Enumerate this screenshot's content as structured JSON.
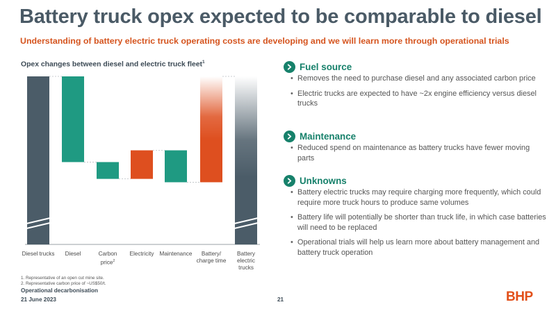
{
  "header": {
    "title": "Battery truck opex expected to be comparable to diesel",
    "subtitle": "Understanding of battery electric truck operating costs are developing and we will learn more through operational trials"
  },
  "chart": {
    "title": "Opex changes between diesel and electric truck fleet",
    "title_sup": "1"
  },
  "chart_data": {
    "type": "bar",
    "subtype": "waterfall",
    "title": "Opex changes between diesel and electric truck fleet",
    "categories": [
      "Diesel trucks",
      "Diesel",
      "Carbon price",
      "Electricity",
      "Maintenance",
      "Battery/ charge time",
      "Battery electric trucks"
    ],
    "value_axis": "none (no numeric scale shown)",
    "steps": [
      {
        "category": "Diesel trucks",
        "kind": "total",
        "start": 0,
        "end": 100,
        "color": "#4b5c68",
        "axis_break": true
      },
      {
        "category": "Diesel",
        "kind": "decrease",
        "start": 100,
        "end": 49,
        "color": "#1f9a82"
      },
      {
        "category": "Carbon price",
        "kind": "decrease",
        "start": 49,
        "end": 39,
        "color": "#1f9a82"
      },
      {
        "category": "Electricity",
        "kind": "increase",
        "start": 39,
        "end": 56,
        "color": "#de4f1f"
      },
      {
        "category": "Maintenance",
        "kind": "decrease",
        "start": 56,
        "end": 37,
        "color": "#1f9a82"
      },
      {
        "category": "Battery/ charge time",
        "kind": "increase_uncertain",
        "start": 37,
        "end": 100,
        "color": "#de4f1f",
        "gradient_top": true
      },
      {
        "category": "Battery electric trucks",
        "kind": "total_uncertain",
        "start": 0,
        "end": 100,
        "color": "#4b5c68",
        "gradient_top": true,
        "axis_break": true
      }
    ]
  },
  "xaxis": {
    "labels": [
      {
        "lines": [
          "Diesel trucks"
        ]
      },
      {
        "lines": [
          "Diesel"
        ]
      },
      {
        "lines": [
          "Carbon",
          "price"
        ],
        "sup": "2"
      },
      {
        "lines": [
          "Electricity"
        ]
      },
      {
        "lines": [
          "Maintenance"
        ]
      },
      {
        "lines": [
          "Battery/",
          "charge time"
        ]
      },
      {
        "lines": [
          "Battery",
          "electric",
          "trucks"
        ]
      }
    ]
  },
  "footnotes": {
    "note1": "1.  Representative of an open cut mine site.",
    "note2": "2.  Representative carbon price of ~US$50/t."
  },
  "footer": {
    "event": "Operational decarbonisation",
    "date": "21 June 2023",
    "page": "21",
    "logo": "BHP"
  },
  "sections": {
    "fuel": {
      "title": "Fuel source",
      "bullets": [
        "Removes the need to purchase diesel and any associated carbon price",
        "Electric trucks are expected to have ~2x engine efficiency versus diesel trucks"
      ]
    },
    "maintenance": {
      "title": "Maintenance",
      "bullets": [
        "Reduced spend on maintenance as battery trucks have fewer moving parts"
      ]
    },
    "unknowns": {
      "title": "Unknowns",
      "bullets": [
        "Battery electric trucks may require charging more frequently, which could require more truck hours to produce same volumes",
        "Battery life will potentially be shorter than truck life, in which case batteries will need to be replaced",
        "Operational trials will help us learn more about battery management and battery truck operation"
      ]
    }
  },
  "colors": {
    "accent": "#d5541e",
    "teal": "#17816b",
    "slate": "#4b5c68",
    "title": "#4a5a66"
  },
  "icons": {
    "section": "chevron-right-circle-icon"
  }
}
